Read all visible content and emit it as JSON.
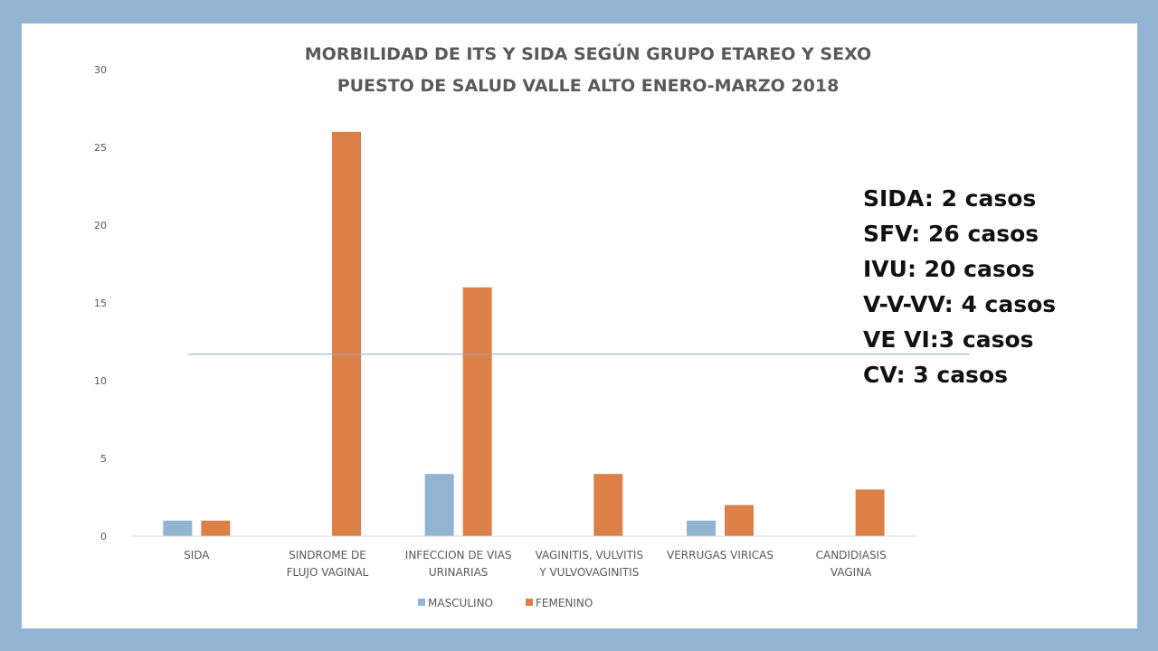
{
  "colors": {
    "frame": "#93b4d2",
    "masculino": "#91b4d3",
    "femenino": "#dd8048",
    "axis": "#d9d9d9",
    "text": "#595959",
    "reference_line": "#8eaac6"
  },
  "chart_data": {
    "type": "bar",
    "title": "MORBILIDAD DE ITS Y SIDA SEGÚN GRUPO ETAREO Y SEXO",
    "subtitle": "PUESTO DE SALUD VALLE ALTO  ENERO-MARZO 2018",
    "categories": [
      [
        "SIDA"
      ],
      [
        "SINDROME DE",
        "FLUJO VAGINAL"
      ],
      [
        "INFECCION DE VIAS",
        "URINARIAS"
      ],
      [
        "VAGINITIS, VULVITIS",
        "Y VULVOVAGINITIS"
      ],
      [
        "VERRUGAS VIRICAS"
      ],
      [
        "CANDIDIASIS",
        "VAGINA"
      ]
    ],
    "series": [
      {
        "name": "MASCULINO",
        "color": "#91b4d3",
        "values": [
          1,
          0,
          4,
          0,
          1,
          0
        ]
      },
      {
        "name": "FEMENINO",
        "color": "#dd8048",
        "values": [
          1,
          26,
          16,
          4,
          2,
          3
        ]
      }
    ],
    "yticks": [
      "0",
      "5",
      "10",
      "15",
      "20",
      "25",
      "30"
    ],
    "ylim": [
      0,
      30
    ],
    "grid": false,
    "legend": "bottom",
    "reference_line_value": 11.7
  },
  "summary": [
    "SIDA: 2 casos",
    "SFV: 26 casos",
    "IVU: 20 casos",
    "V-V-VV: 4 casos",
    "VE VI:3 casos",
    "CV: 3 casos"
  ]
}
